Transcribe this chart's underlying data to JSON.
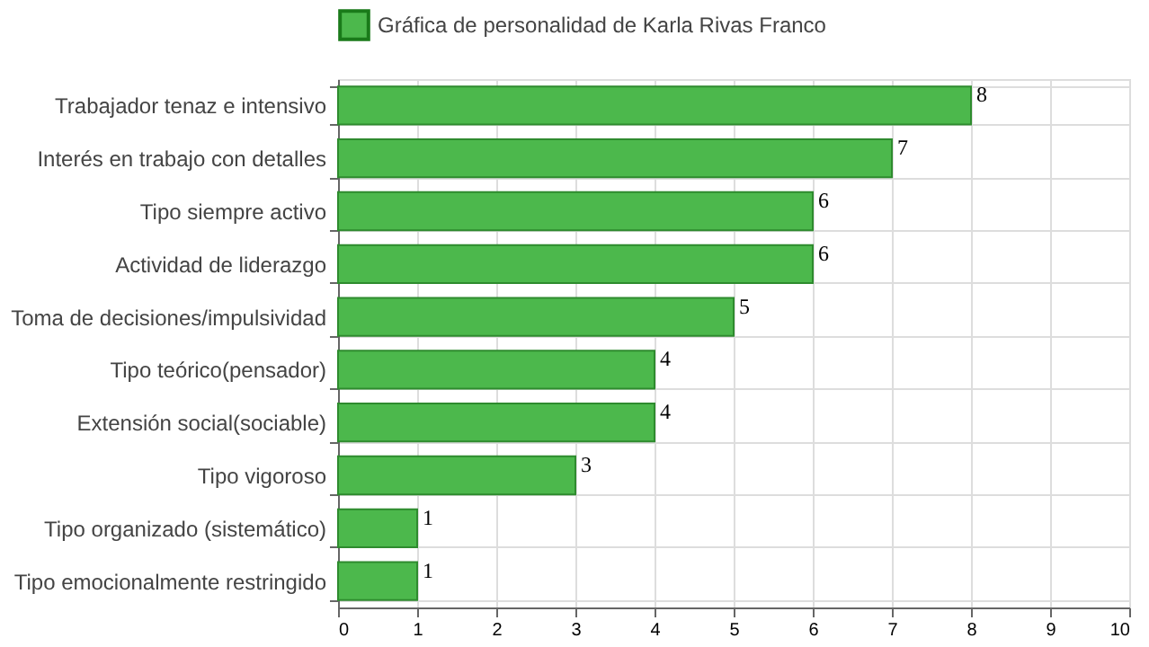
{
  "chart_data": {
    "type": "bar",
    "orientation": "horizontal",
    "categories": [
      "Trabajador tenaz e intensivo",
      "Interés en trabajo con detalles",
      "Tipo siempre activo",
      "Actividad de liderazgo",
      "Toma de decisiones/impulsividad",
      "Tipo teórico(pensador)",
      "Extensión social(sociable)",
      "Tipo vigoroso",
      "Tipo organizado (sistemático)",
      "Tipo emocionalmente restringido"
    ],
    "series": [
      {
        "name": "Gráfica de personalidad de Karla Rivas Franco",
        "color": "#4cb84c",
        "values": [
          8,
          7,
          6,
          6,
          5,
          4,
          4,
          3,
          1,
          1
        ]
      }
    ],
    "xlim": [
      0,
      10
    ],
    "xticks": [
      0,
      1,
      2,
      3,
      4,
      5,
      6,
      7,
      8,
      9,
      10
    ],
    "grid": true,
    "legend": "top",
    "data_labels": true
  }
}
